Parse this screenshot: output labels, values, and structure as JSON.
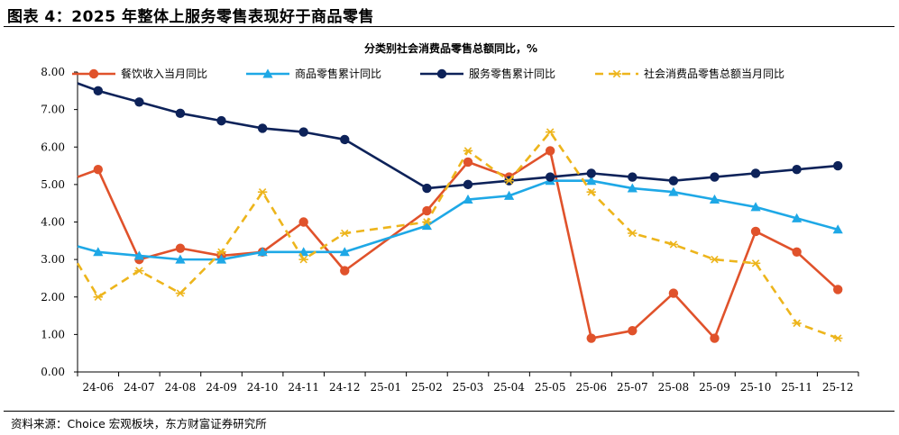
{
  "figure": {
    "title": "图表 4：2025 年整体上服务零售表现好于商品零售",
    "source": "资料来源：Choice 宏观板块，东方财富证券研究所"
  },
  "chart_data": {
    "type": "line",
    "title": "分类别社会消费品零售总额同比，%",
    "xlabel": "",
    "ylabel": "",
    "ylim": [
      0,
      8
    ],
    "yticks": [
      "0.00",
      "1.00",
      "2.00",
      "3.00",
      "4.00",
      "5.00",
      "6.00",
      "7.00",
      "8.00"
    ],
    "grid": false,
    "legend_position": "top",
    "categories": [
      "24-06",
      "24-07",
      "24-08",
      "24-09",
      "24-10",
      "24-11",
      "24-12",
      "25-01",
      "25-02",
      "25-03",
      "25-04",
      "25-05",
      "25-06",
      "25-07",
      "25-08",
      "25-09",
      "25-10",
      "25-11",
      "25-12"
    ],
    "series": [
      {
        "name": "餐饮收入当月同比",
        "color": "#E0522B",
        "marker": "circle",
        "dash": "solid",
        "left_edge": 5.2,
        "values": [
          5.4,
          3.0,
          3.3,
          3.1,
          3.2,
          4.0,
          2.7,
          null,
          4.3,
          5.6,
          5.2,
          5.9,
          0.9,
          1.1,
          2.1,
          0.9,
          3.75,
          3.2,
          2.2
        ]
      },
      {
        "name": "商品零售累计同比",
        "color": "#1EA8E6",
        "marker": "triangle",
        "dash": "solid",
        "left_edge": 3.35,
        "values": [
          3.2,
          3.1,
          3.0,
          3.0,
          3.2,
          3.2,
          3.2,
          null,
          3.9,
          4.6,
          4.7,
          5.1,
          5.1,
          4.9,
          4.8,
          4.6,
          4.4,
          4.1,
          3.8
        ]
      },
      {
        "name": "服务零售累计同比",
        "color": "#0D2259",
        "marker": "circle",
        "dash": "solid",
        "left_edge": 7.7,
        "values": [
          7.5,
          7.2,
          6.9,
          6.7,
          6.5,
          6.4,
          6.2,
          null,
          4.9,
          5.0,
          5.1,
          5.2,
          5.3,
          5.2,
          5.1,
          5.2,
          5.3,
          5.4,
          5.5
        ]
      },
      {
        "name": "社会消费品零售总额当月同比",
        "color": "#EDB51C",
        "marker": "star",
        "dash": "dashed",
        "left_edge": 2.9,
        "values": [
          2.0,
          2.7,
          2.1,
          3.2,
          4.8,
          3.0,
          3.7,
          null,
          4.0,
          5.9,
          5.1,
          6.4,
          4.8,
          3.7,
          3.4,
          3.0,
          2.9,
          1.3,
          0.9
        ]
      }
    ]
  }
}
